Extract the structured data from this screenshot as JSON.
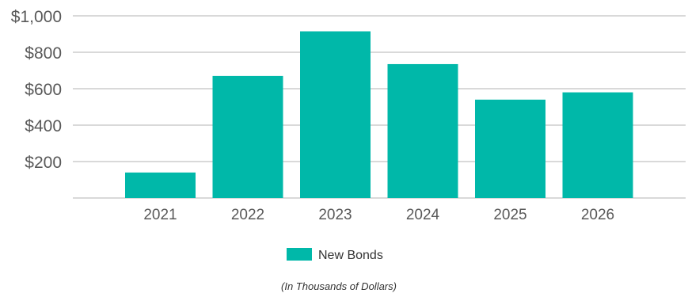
{
  "chart_data": {
    "type": "bar",
    "categories": [
      "2021",
      "2022",
      "2023",
      "2024",
      "2025",
      "2026"
    ],
    "series": [
      {
        "name": "New Bonds",
        "values": [
          140,
          670,
          915,
          735,
          540,
          580
        ],
        "color": "#00B8A9"
      }
    ],
    "ylim": [
      0,
      1000
    ],
    "yticks": [
      200,
      400,
      600,
      800,
      1000
    ],
    "ytick_labels": [
      "$200",
      "$400",
      "$600",
      "$800",
      "$1,000"
    ],
    "grid": true,
    "gridColor": "#D9D9D9",
    "legend_position": "bottom-center",
    "footnote": "(In Thousands of Dollars)"
  }
}
